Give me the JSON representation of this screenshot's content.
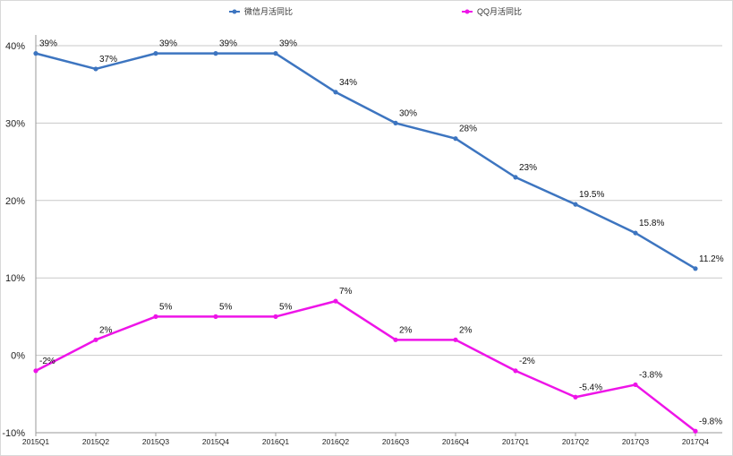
{
  "chart_data": {
    "type": "line",
    "title": "",
    "xlabel": "",
    "ylabel": "",
    "categories": [
      "2015Q1",
      "2015Q2",
      "2015Q3",
      "2015Q4",
      "2016Q1",
      "2016Q2",
      "2016Q3",
      "2016Q4",
      "2017Q1",
      "2017Q2",
      "2017Q3",
      "2017Q4"
    ],
    "ylim": [
      -10,
      40
    ],
    "yticks": [
      -10,
      0,
      10,
      20,
      30,
      40
    ],
    "ytick_labels": [
      "-10%",
      "0%",
      "10%",
      "20%",
      "30%",
      "40%"
    ],
    "grid": true,
    "legend_position": "top",
    "series": [
      {
        "name": "微信月活同比",
        "color": "#3d75c0",
        "values": [
          39,
          37,
          39,
          39,
          39,
          34,
          30,
          28,
          23,
          19.5,
          15.8,
          11.2
        ],
        "labels": [
          "39%",
          "37%",
          "39%",
          "39%",
          "39%",
          "34%",
          "30%",
          "28%",
          "23%",
          "19.5%",
          "15.8%",
          "11.2%"
        ]
      },
      {
        "name": "QQ月活同比",
        "color": "#ee14e8",
        "values": [
          -2,
          2,
          5,
          5,
          5,
          7,
          2,
          2,
          -2,
          -5.4,
          -3.8,
          -9.8
        ],
        "labels": [
          "-2%",
          "2%",
          "5%",
          "5%",
          "5%",
          "7%",
          "2%",
          "2%",
          "-2%",
          "-5.4%",
          "-3.8%",
          "-9.8%"
        ]
      }
    ]
  }
}
